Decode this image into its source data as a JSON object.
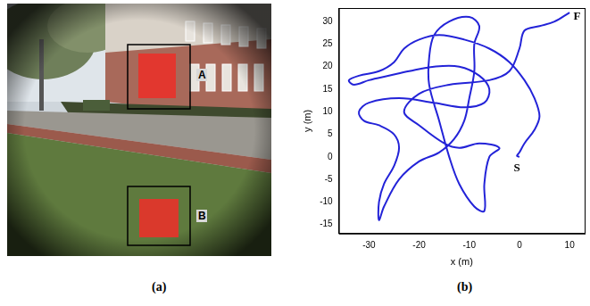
{
  "photo": {
    "label": "(a)",
    "regions": [
      "A",
      "B"
    ]
  },
  "chart_data": {
    "type": "line",
    "caption": "(b)",
    "x_label": "x (m)",
    "y_label": "y (m)",
    "xlim": [
      -36,
      13
    ],
    "xticks": [
      -30,
      -20,
      -10,
      0,
      10
    ],
    "ylim": [
      -17,
      33
    ],
    "yticks": [
      -15,
      -10,
      -5,
      0,
      5,
      10,
      15,
      20,
      25,
      30
    ],
    "grid": false,
    "color": "#2323d8",
    "annotations": [
      {
        "text": "S",
        "x": -0.5,
        "y": -2.5
      },
      {
        "text": "F",
        "x": 11.5,
        "y": 31
      }
    ],
    "x": [
      0,
      -0.5,
      0,
      1,
      3,
      4,
      3,
      1,
      -2,
      -6,
      -11,
      -16,
      -20,
      -23,
      -25,
      -28,
      -32,
      -34,
      -33,
      -30,
      -26,
      -22,
      -17,
      -12,
      -8,
      -6,
      -7,
      -11,
      -17,
      -24,
      -30,
      -32,
      -31,
      -28,
      -25,
      -24,
      -25,
      -27,
      -28,
      -28,
      -27,
      -24,
      -20,
      -16,
      -13,
      -11,
      -10,
      -9,
      -9,
      -8,
      -10,
      -14,
      -17,
      -18,
      -18,
      -16,
      -14,
      -12,
      -9,
      -7,
      -7,
      -6,
      -4,
      -8,
      -12,
      -15,
      -20,
      -23,
      -20,
      -14,
      -6,
      -2,
      0,
      1,
      4,
      7,
      10
    ],
    "y": [
      0,
      0.2,
      1,
      3,
      6,
      9,
      13,
      17,
      21,
      24,
      26,
      27,
      26,
      24,
      21,
      19,
      18,
      17,
      16,
      17,
      18,
      19,
      20,
      20,
      18,
      15,
      12,
      11,
      12,
      13,
      12,
      10,
      8,
      7,
      5,
      2,
      -2,
      -6,
      -10,
      -14,
      -11,
      -5,
      -1,
      1,
      4,
      8,
      13,
      19,
      25,
      29,
      31,
      30,
      27,
      22,
      16,
      8,
      0,
      -6,
      -11,
      -12,
      -6,
      0,
      2,
      3,
      2,
      3,
      7,
      10,
      14,
      16,
      17,
      19,
      24,
      28,
      29,
      30,
      32
    ]
  }
}
